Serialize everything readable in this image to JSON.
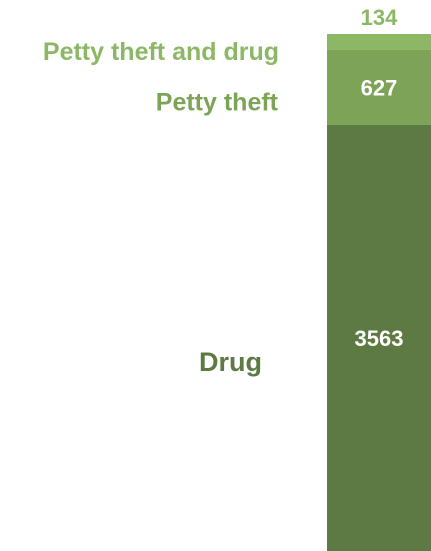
{
  "chart_data": {
    "type": "bar",
    "stacked": true,
    "categories": [
      ""
    ],
    "series": [
      {
        "name": "Drug",
        "values": [
          3563
        ],
        "color": "#5d7a42"
      },
      {
        "name": "Petty theft",
        "values": [
          627
        ],
        "color": "#7ca356"
      },
      {
        "name": "Petty theft and drug",
        "values": [
          134
        ],
        "color": "#8cb866"
      }
    ],
    "value_label_colors": [
      "#ffffff",
      "#ffffff",
      "#8cb866"
    ],
    "category_label_colors": [
      "#5d7a42",
      "#7ca356",
      "#8cb866"
    ],
    "legend": "inline-left",
    "grid": false
  }
}
